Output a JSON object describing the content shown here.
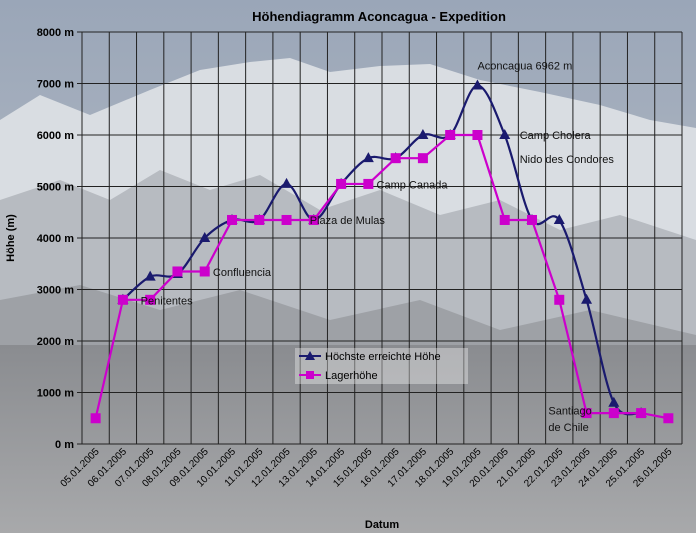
{
  "chart_data": {
    "type": "line",
    "title": "Höhendiagramm Aconcagua - Expedition",
    "xlabel": "Datum",
    "ylabel": "Höhe (m)",
    "ylim": [
      0,
      8000
    ],
    "yticks": [
      "0 m",
      "1000 m",
      "2000 m",
      "3000 m",
      "4000 m",
      "5000 m",
      "6000 m",
      "7000 m",
      "8000 m"
    ],
    "grid": true,
    "legend_position": "lower-center",
    "categories": [
      "05.01.2005",
      "06.01.2005",
      "07.01.2005",
      "08.01.2005",
      "09.01.2005",
      "10.01.2005",
      "11.01.2005",
      "12.01.2005",
      "13.01.2005",
      "14.01.2005",
      "15.01.2005",
      "16.01.2005",
      "17.01.2005",
      "18.01.2005",
      "19.01.2005",
      "20.01.2005",
      "21.01.2005",
      "22.01.2005",
      "23.01.2005",
      "24.01.2005",
      "25.01.2005",
      "26.01.2005"
    ],
    "series": [
      {
        "name": "Höchste erreichte Höhe",
        "color": "#1a1a6e",
        "marker": "triangle",
        "x": [
          1,
          2,
          3,
          4,
          5,
          6,
          7,
          8,
          9,
          10,
          11,
          12,
          13,
          14,
          15,
          16,
          17,
          18,
          19,
          20
        ],
        "values": [
          2800,
          3250,
          3300,
          4000,
          4350,
          4350,
          5050,
          4350,
          5050,
          5550,
          5550,
          6000,
          6000,
          6962,
          6000,
          4350,
          4350,
          2800,
          800,
          600
        ]
      },
      {
        "name": "Lagerhöhe",
        "color": "#cc00cc",
        "marker": "square",
        "x": [
          0,
          1,
          2,
          3,
          4,
          5,
          6,
          7,
          8,
          9,
          10,
          11,
          12,
          13,
          14,
          15,
          16,
          17,
          18,
          19,
          20,
          21
        ],
        "values": [
          500,
          2800,
          2800,
          3350,
          3350,
          4350,
          4350,
          4350,
          4350,
          5050,
          5050,
          5550,
          5550,
          6000,
          6000,
          4350,
          4350,
          2800,
          600,
          600,
          600,
          500
        ]
      }
    ],
    "annotations": [
      {
        "text": "Aconcagua 6962 m",
        "x": 14,
        "y": 7270
      },
      {
        "text": "Camp Cholera",
        "x": 15.55,
        "y": 5920
      },
      {
        "text": "Nido des Condores",
        "x": 15.55,
        "y": 5460
      },
      {
        "text": "Camp Canada",
        "x": 10.3,
        "y": 4960
      },
      {
        "text": "Plaza de Mulas",
        "x": 7.85,
        "y": 4270
      },
      {
        "text": "Confluencia",
        "x": 4.3,
        "y": 3260
      },
      {
        "text": "Penitentes",
        "x": 1.65,
        "y": 2710
      },
      {
        "text": "Santiago",
        "x": 16.6,
        "y": 570
      },
      {
        "text": "de Chile",
        "x": 16.6,
        "y": 250
      }
    ]
  }
}
